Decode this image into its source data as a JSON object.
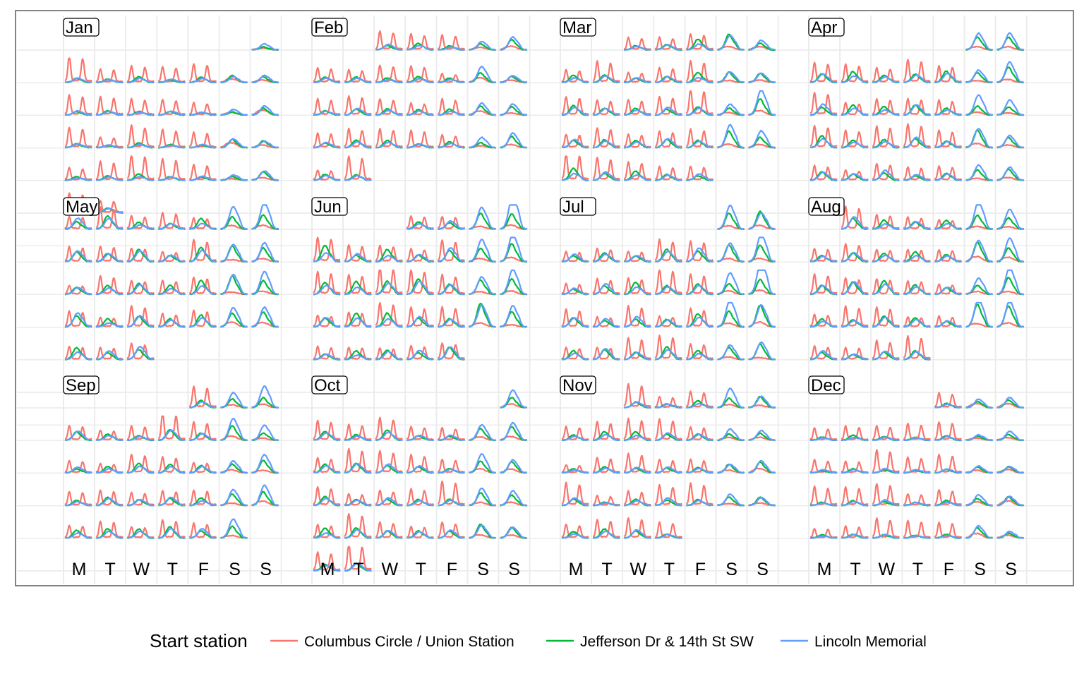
{
  "chart_data": {
    "type": "line",
    "title": "",
    "xlabel": "",
    "ylabel": "",
    "layout": "calendar",
    "months": [
      "Jan",
      "Feb",
      "Mar",
      "Apr",
      "May",
      "Jun",
      "Jul",
      "Aug",
      "Sep",
      "Oct",
      "Nov",
      "Dec"
    ],
    "weekday_labels": [
      "M",
      "T",
      "W",
      "T",
      "F",
      "S",
      "S"
    ],
    "first_weekday_of_month": [
      6,
      2,
      2,
      5,
      0,
      3,
      5,
      1,
      4,
      6,
      2,
      4
    ],
    "days_in_month": [
      31,
      28,
      31,
      30,
      31,
      30,
      31,
      31,
      30,
      31,
      30,
      31
    ],
    "x_unit": "hour of day (0-24) within each day cell",
    "y_unit": "relative trip volume (0-1) within each day cell",
    "legend": {
      "title": "Start station",
      "position": "bottom",
      "entries": [
        "Columbus Circle / Union Station",
        "Jefferson Dr & 14th St SW",
        "Lincoln Memorial"
      ]
    },
    "series": [
      {
        "name": "Columbus Circle / Union Station",
        "color": "#F8766D",
        "weekday_peak": 0.75,
        "weekend_peak": 0.25,
        "profile": "commute double peak (08:00, 17:00)"
      },
      {
        "name": "Jefferson Dr & 14th St SW",
        "color": "#00BA38",
        "weekday_peak": 0.35,
        "weekend_peak": 0.55,
        "profile": "midday peak (13:00)"
      },
      {
        "name": "Lincoln Memorial",
        "color": "#619CFF",
        "weekday_peak": 0.3,
        "weekend_peak": 0.75,
        "profile": "midday/afternoon peak (14:00)"
      }
    ],
    "grid": true,
    "seed": 2016
  }
}
